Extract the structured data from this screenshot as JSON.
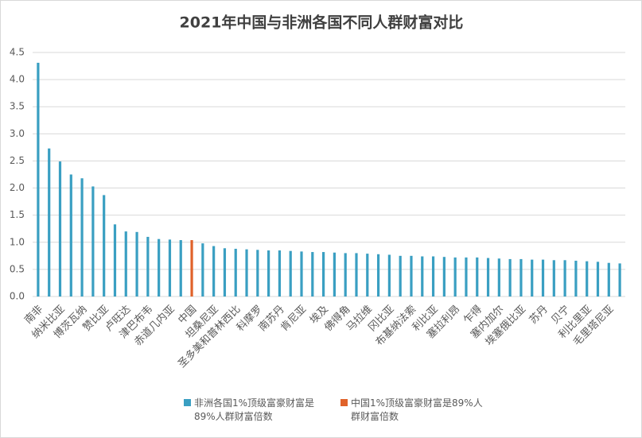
{
  "chart_data": {
    "type": "bar",
    "title": "2021年中国与非洲各国不同人群财富对比",
    "categories": [
      "南非",
      null,
      "纳米比亚",
      null,
      "博茨瓦纳",
      null,
      "赞比亚",
      null,
      "卢旺达",
      null,
      "津巴布韦",
      null,
      "赤道几内亚",
      null,
      "中国",
      null,
      "坦桑尼亚",
      null,
      "圣多美和普林西比",
      null,
      "科摩罗",
      null,
      "南苏丹",
      null,
      "肯尼亚",
      null,
      "埃及",
      null,
      "佛得角",
      null,
      "马拉维",
      null,
      "冈比亚",
      null,
      "布基纳法索",
      null,
      "利比亚",
      null,
      "塞拉利昂",
      null,
      "乍得",
      null,
      "塞内加尔",
      null,
      "埃塞俄比亚",
      null,
      "苏丹",
      null,
      "贝宁",
      null,
      "利比里亚",
      null,
      "毛里塔尼亚",
      null
    ],
    "series": [
      {
        "name": "非洲各国1%顶级富豪财富是89%人群财富倍数",
        "color": "#3a9fc2",
        "values": [
          4.31,
          2.73,
          2.49,
          2.25,
          2.18,
          2.03,
          1.87,
          1.33,
          1.2,
          1.19,
          1.1,
          1.06,
          1.05,
          1.04,
          null,
          0.98,
          0.93,
          0.89,
          0.88,
          0.87,
          0.86,
          0.85,
          0.85,
          0.84,
          0.83,
          0.82,
          0.82,
          0.81,
          0.8,
          0.8,
          0.79,
          0.78,
          0.77,
          0.75,
          0.75,
          0.74,
          0.74,
          0.73,
          0.72,
          0.72,
          0.72,
          0.71,
          0.7,
          0.69,
          0.69,
          0.68,
          0.68,
          0.67,
          0.67,
          0.66,
          0.65,
          0.64,
          0.62,
          0.61
        ]
      },
      {
        "name": "中国1%顶级富豪财富是89%人群财富倍数",
        "color": "#e0622a",
        "values": [
          null,
          null,
          null,
          null,
          null,
          null,
          null,
          null,
          null,
          null,
          null,
          null,
          null,
          null,
          1.04,
          null,
          null,
          null,
          null,
          null,
          null,
          null,
          null,
          null,
          null,
          null,
          null,
          null,
          null,
          null,
          null,
          null,
          null,
          null,
          null,
          null,
          null,
          null,
          null,
          null,
          null,
          null,
          null,
          null,
          null,
          null,
          null,
          null,
          null,
          null,
          null,
          null,
          null,
          null
        ]
      }
    ],
    "ylim": [
      0,
      4.5
    ],
    "yticks": [
      {
        "value": 0,
        "label": "0.0"
      },
      0.5,
      {
        "value": 1,
        "label": "1.0"
      },
      1.5,
      {
        "value": 2,
        "label": "2.0"
      },
      2.5,
      {
        "value": 3,
        "label": "3.0"
      },
      3.5,
      {
        "value": 4,
        "label": "4.0"
      },
      4.5
    ],
    "grid": true
  }
}
